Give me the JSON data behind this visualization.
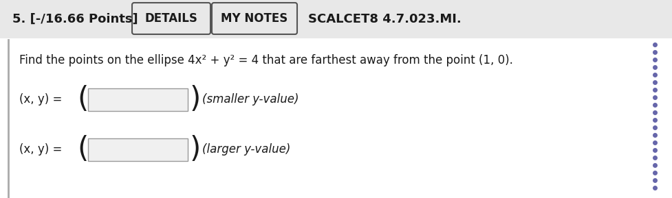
{
  "title_number": "5.",
  "title_points": "[-/16.66 Points]",
  "btn1": "DETAILS",
  "btn2": "MY NOTES",
  "scalcet": "SCALCET8 4.7.023.MI.",
  "problem_text": "Find the points on the ellipse 4x² + y² = 4 that are farthest away from the point (1, 0).",
  "row1_label": "(x, y) = ",
  "row1_hint": "(smaller y-value)",
  "row2_label": "(x, y) = ",
  "row2_hint": "(larger y-value)",
  "bg_color": "#e8e8e8",
  "content_bg": "#ffffff",
  "btn_bg": "#e8e8e8",
  "btn_border": "#555555",
  "text_color": "#1a1a1a",
  "dotted_color": "#6666aa",
  "input_bg": "#f0f0f0",
  "input_border": "#999999",
  "left_bar_color": "#aaaaaa"
}
